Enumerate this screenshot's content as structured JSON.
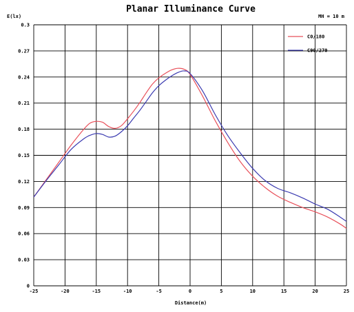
{
  "chart_data": {
    "type": "line",
    "title": "Planar Illuminance Curve",
    "xlabel": "Distance(m)",
    "ylabel": "E(lx)",
    "annotation": "MH = 10 m",
    "xlim": [
      -25,
      25
    ],
    "ylim": [
      0,
      0.3
    ],
    "xticks": [
      -25,
      -20,
      -15,
      -10,
      -5,
      0,
      5,
      10,
      15,
      20,
      25
    ],
    "yticks": [
      "0",
      "0.03",
      "0.06",
      "0.09",
      "0.12",
      "0.15",
      "0.18",
      "0.21",
      "0.24",
      "0.27",
      "0.3"
    ],
    "grid": true,
    "legend_position": "top-right",
    "series": [
      {
        "name": "C0/180",
        "color": "#e8505a",
        "x": [
          -25,
          -23,
          -21,
          -19,
          -17,
          -16,
          -15,
          -14,
          -13,
          -12,
          -11,
          -10,
          -9,
          -8,
          -7,
          -6,
          -5,
          -4,
          -3,
          -2,
          -1,
          0,
          2,
          4,
          6,
          8,
          10,
          12,
          14,
          16,
          18,
          20,
          22,
          24,
          25
        ],
        "y": [
          0.102,
          0.122,
          0.142,
          0.162,
          0.18,
          0.187,
          0.189,
          0.188,
          0.183,
          0.181,
          0.184,
          0.192,
          0.201,
          0.211,
          0.222,
          0.232,
          0.239,
          0.244,
          0.248,
          0.25,
          0.249,
          0.243,
          0.218,
          0.19,
          0.165,
          0.143,
          0.126,
          0.113,
          0.103,
          0.096,
          0.09,
          0.085,
          0.079,
          0.071,
          0.066
        ]
      },
      {
        "name": "C90/270",
        "color": "#3a3ab0",
        "x": [
          -25,
          -23,
          -21,
          -19,
          -17,
          -16,
          -15,
          -14,
          -13,
          -12,
          -11,
          -10,
          -9,
          -8,
          -7,
          -6,
          -5,
          -4,
          -3,
          -2,
          -1,
          0,
          2,
          4,
          6,
          8,
          10,
          12,
          14,
          16,
          18,
          20,
          22,
          24,
          25
        ],
        "y": [
          0.102,
          0.121,
          0.139,
          0.157,
          0.169,
          0.173,
          0.175,
          0.174,
          0.171,
          0.172,
          0.177,
          0.184,
          0.193,
          0.202,
          0.212,
          0.222,
          0.23,
          0.236,
          0.241,
          0.245,
          0.247,
          0.244,
          0.224,
          0.197,
          0.173,
          0.153,
          0.135,
          0.121,
          0.112,
          0.107,
          0.101,
          0.094,
          0.088,
          0.079,
          0.074
        ]
      }
    ]
  }
}
